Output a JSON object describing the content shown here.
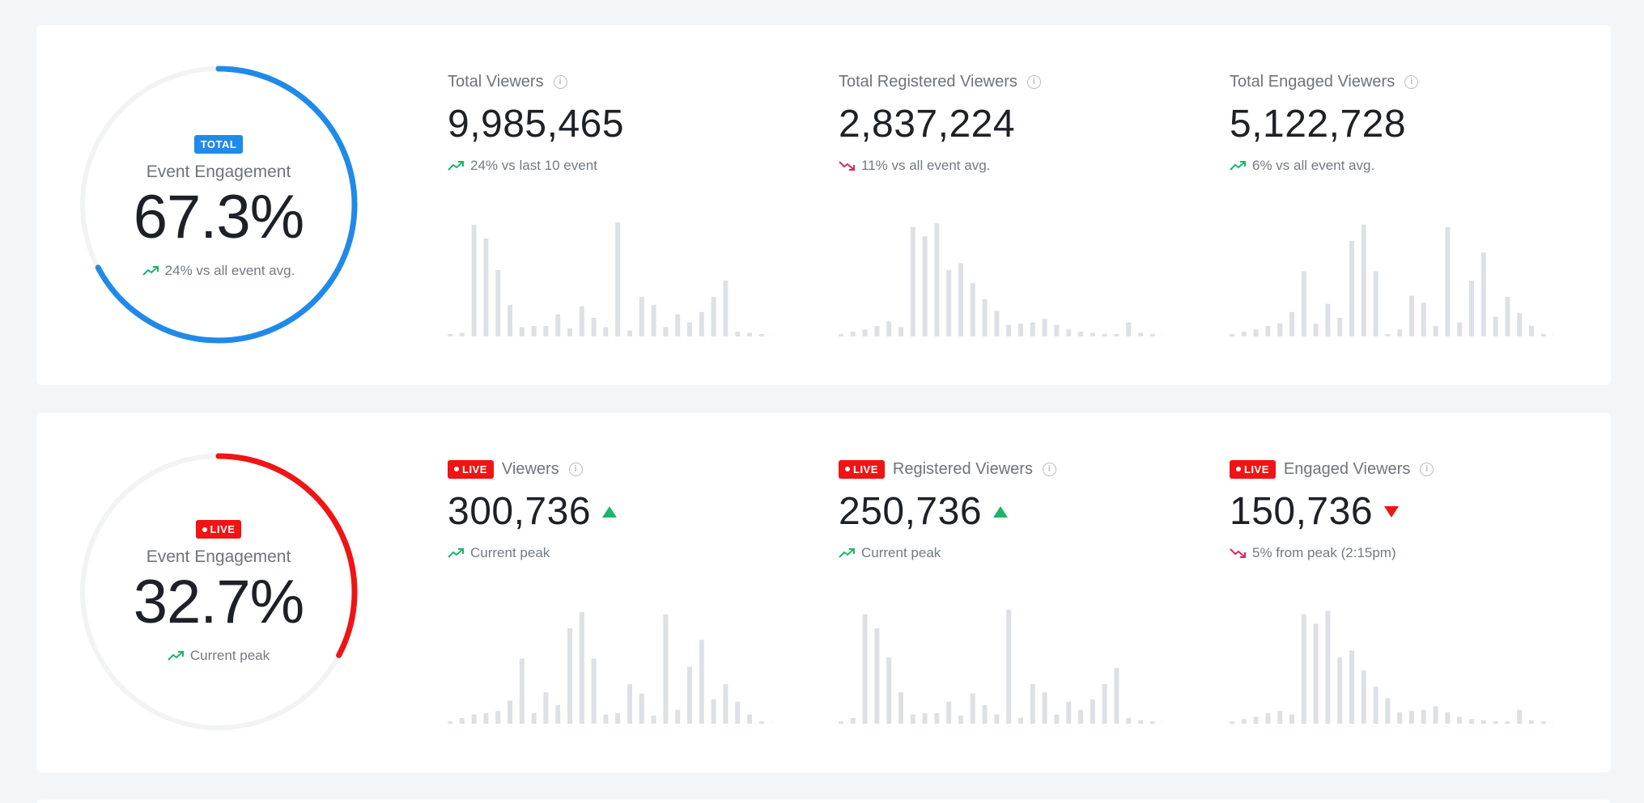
{
  "colors": {
    "total_accent": "#1f8ae9",
    "live_accent": "#f01414",
    "up": "#1bb56a",
    "down": "#e0245e",
    "bar": "#dde1e6",
    "track": "#f1f3f5"
  },
  "total": {
    "engagement": {
      "badge": "TOTAL",
      "label": "Event Engagement",
      "value": "67.3%",
      "progress": 0.673,
      "delta": "24% vs all event avg.",
      "trend": "up"
    },
    "metrics": [
      {
        "label": "Total Viewers",
        "value": "9,985,465",
        "delta": "24% vs last 10 event",
        "trend": "up",
        "bars": [
          2,
          3,
          96,
          84,
          57,
          27,
          8,
          9,
          9,
          19,
          7,
          26,
          16,
          8,
          98,
          5,
          34,
          27,
          8,
          19,
          12,
          21,
          34,
          48,
          4,
          3,
          2,
          2
        ]
      },
      {
        "label": "Total Registered Viewers",
        "value": "2,837,224",
        "delta": "11% vs all event avg.",
        "trend": "down",
        "bars": [
          2,
          4,
          6,
          9,
          13,
          8,
          94,
          86,
          97,
          57,
          63,
          46,
          32,
          22,
          10,
          11,
          12,
          15,
          10,
          6,
          4,
          3,
          2,
          2,
          12,
          3,
          2,
          2
        ]
      },
      {
        "label": "Total Engaged Viewers",
        "value": "5,122,728",
        "delta": "6% vs all event avg.",
        "trend": "up",
        "bars": [
          2,
          4,
          6,
          9,
          11,
          21,
          56,
          11,
          28,
          16,
          82,
          96,
          56,
          2,
          6,
          35,
          29,
          9,
          94,
          12,
          48,
          72,
          17,
          34,
          20,
          9,
          2,
          2
        ]
      }
    ]
  },
  "live": {
    "engagement": {
      "badge": "LIVE",
      "label": "Event Engagement",
      "value": "32.7%",
      "progress": 0.327,
      "delta": "Current peak",
      "trend": "up"
    },
    "metrics": [
      {
        "badge": "LIVE",
        "label": "Viewers",
        "value": "300,736",
        "arrow": "up",
        "delta": "Current peak",
        "trend": "up",
        "bars": [
          2,
          5,
          8,
          9,
          11,
          20,
          56,
          9,
          27,
          16,
          82,
          96,
          56,
          8,
          9,
          34,
          26,
          7,
          94,
          12,
          49,
          72,
          21,
          34,
          19,
          8,
          2,
          2
        ]
      },
      {
        "badge": "LIVE",
        "label": "Registered Viewers",
        "value": "250,736",
        "arrow": "up",
        "delta": "Current peak",
        "trend": "up",
        "bars": [
          2,
          5,
          94,
          82,
          57,
          27,
          8,
          9,
          9,
          19,
          7,
          26,
          16,
          8,
          98,
          5,
          34,
          27,
          8,
          19,
          12,
          21,
          34,
          48,
          5,
          3,
          2,
          2
        ]
      },
      {
        "badge": "LIVE",
        "label": "Engaged Viewers",
        "value": "150,736",
        "arrow": "down",
        "delta": "5% from peak (2:15pm)",
        "trend": "down",
        "bars": [
          2,
          4,
          6,
          9,
          11,
          8,
          94,
          86,
          97,
          57,
          63,
          46,
          32,
          22,
          10,
          11,
          12,
          15,
          10,
          6,
          4,
          3,
          2,
          2,
          12,
          3,
          2,
          2
        ]
      }
    ]
  }
}
